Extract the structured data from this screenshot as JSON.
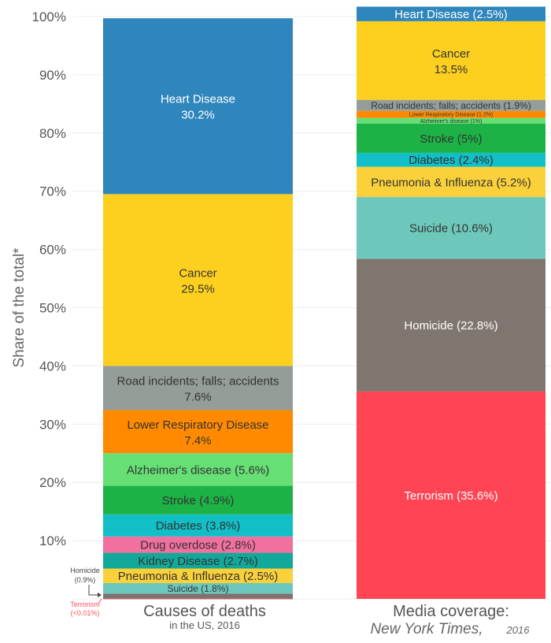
{
  "chart_data": {
    "type": "bar",
    "stacked": true,
    "ylabel": "Share of the total*",
    "ylim": [
      0,
      100
    ],
    "yticks": [
      "100%",
      "90%",
      "80%",
      "70%",
      "60%",
      "50%",
      "40%",
      "30%",
      "20%",
      "10%"
    ],
    "grid": true,
    "columns": [
      {
        "title": "Causes of deaths",
        "subtitle": "in the US, 2016",
        "segments": [
          {
            "name": "Terrorism",
            "value": 0.01,
            "color": "#ff4f5a",
            "label": ""
          },
          {
            "name": "Homicide",
            "value": 0.9,
            "color": "#7d726f",
            "label": ""
          },
          {
            "name": "Suicide",
            "value": 1.8,
            "color": "#6cc7be",
            "label": "Suicide (1.8%)"
          },
          {
            "name": "Pneumonia & Influenza",
            "value": 2.5,
            "color": "#fbd13b",
            "label": "Pneumonia & Influenza (2.5%)"
          },
          {
            "name": "Kidney Disease",
            "value": 2.7,
            "color": "#13a99a",
            "label": "Kidney Disease (2.7%)"
          },
          {
            "name": "Drug overdose",
            "value": 2.8,
            "color": "#f2709f",
            "label": "Drug overdose (2.8%)"
          },
          {
            "name": "Diabetes",
            "value": 3.8,
            "color": "#12bfc6",
            "label": "Diabetes (3.8%)"
          },
          {
            "name": "Stroke",
            "value": 4.9,
            "color": "#1db246",
            "label": "Stroke (4.9%)"
          },
          {
            "name": "Alzheimer's disease",
            "value": 5.6,
            "color": "#66df75",
            "label": "Alzheimer's disease (5.6%)"
          },
          {
            "name": "Lower Respiratory Disease",
            "value": 7.4,
            "color": "#ff8a00",
            "label": "Lower Respiratory Disease",
            "label2": "7.4%"
          },
          {
            "name": "Road incidents; falls; accidents",
            "value": 7.6,
            "color": "#959d98",
            "label": "Road incidents; falls; accidents",
            "label2": "7.6%"
          },
          {
            "name": "Cancer",
            "value": 29.5,
            "color": "#fdd01f",
            "label": "Cancer",
            "label2": "29.5%"
          },
          {
            "name": "Heart Disease",
            "value": 30.2,
            "color": "#2f86bd",
            "label": "Heart Disease",
            "label2": "30.2%"
          }
        ]
      },
      {
        "title": "Media coverage:",
        "subtitle_italic": "New York Times,",
        "subtitle_year": "2016",
        "segments": [
          {
            "name": "Terrorism",
            "value": 35.6,
            "color": "#ff4553",
            "label": "Terrorism (35.6%)"
          },
          {
            "name": "Homicide",
            "value": 22.8,
            "color": "#807670",
            "label": "Homicide (22.8%)"
          },
          {
            "name": "Suicide",
            "value": 10.6,
            "color": "#6dc8bb",
            "label": "Suicide (10.6%)"
          },
          {
            "name": "Pneumonia & Influenza",
            "value": 5.2,
            "color": "#fbd13b",
            "label": "Pneumonia & Influenza (5.2%)"
          },
          {
            "name": "Diabetes",
            "value": 2.4,
            "color": "#12bfc6",
            "label": "Diabetes (2.4%)"
          },
          {
            "name": "Stroke",
            "value": 5,
            "color": "#1db246",
            "label": "Stroke (5%)"
          },
          {
            "name": "Alzheimer's disease",
            "value": 1,
            "color": "#66df75",
            "label": "Alzheimer's disease (1%)"
          },
          {
            "name": "Lower Respiratory Disease",
            "value": 1.2,
            "color": "#ff8a00",
            "label": "Lower Respiratory Disease (1.2%)"
          },
          {
            "name": "Road incidents; falls; accidents",
            "value": 1.9,
            "color": "#959d98",
            "label": "Road incidents; falls; accidents (1.9%)"
          },
          {
            "name": "Cancer",
            "value": 13.5,
            "color": "#fdd01f",
            "label": "Cancer",
            "label2": "13.5%"
          },
          {
            "name": "Heart Disease",
            "value": 2.5,
            "color": "#2f86bd",
            "label": "Heart Disease (2.5%)"
          }
        ]
      }
    ],
    "annotations": [
      {
        "text": "Homicide",
        "text2": "(0.9%)",
        "color": "#444444"
      },
      {
        "text": "Terrorism",
        "text2": "(<0.01%)",
        "color": "#ff4f5a"
      }
    ]
  }
}
